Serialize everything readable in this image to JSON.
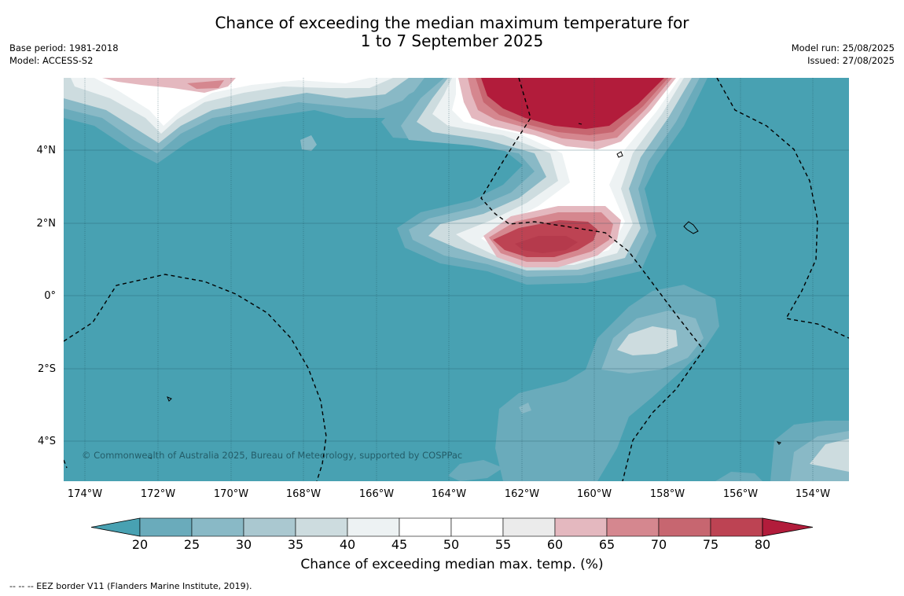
{
  "title": {
    "line1": "Chance of exceeding the median maximum temperature for",
    "line2": "1 to 7 September 2025"
  },
  "meta_left": {
    "base_period": "Base period: 1981-2018",
    "model": "Model: ACCESS-S2"
  },
  "meta_right": {
    "model_run": "Model run: 25/08/2025",
    "issued": "Issued: 27/08/2025"
  },
  "map": {
    "lat_labels": [
      "4°N",
      "2°N",
      "0°",
      "2°S",
      "4°S"
    ],
    "lon_labels": [
      "174°W",
      "172°W",
      "170°W",
      "168°W",
      "166°W",
      "164°W",
      "162°W",
      "160°W",
      "158°W",
      "156°W",
      "154°W"
    ],
    "copyright": "© Commonwealth of Australia 2025, Bureau of Meteorology, supported by COSPPac"
  },
  "colorbar": {
    "ticks": [
      "20",
      "25",
      "30",
      "35",
      "40",
      "45",
      "50",
      "55",
      "60",
      "65",
      "70",
      "75",
      "80"
    ],
    "colors": [
      "#48a1b2",
      "#6aabbb",
      "#89b9c6",
      "#aac8d0",
      "#cddcdf",
      "#edf2f3",
      "#ffffff",
      "#ffffff",
      "#ebebeb",
      "#e4b8bf",
      "#d5878f",
      "#c76670",
      "#bd4353",
      "#b21c3b"
    ],
    "label": "Chance of exceeding median max. temp. (%)"
  },
  "footnote": "--  --  -- EEZ border V11 (Flanders Marine Institute, 2019)."
}
